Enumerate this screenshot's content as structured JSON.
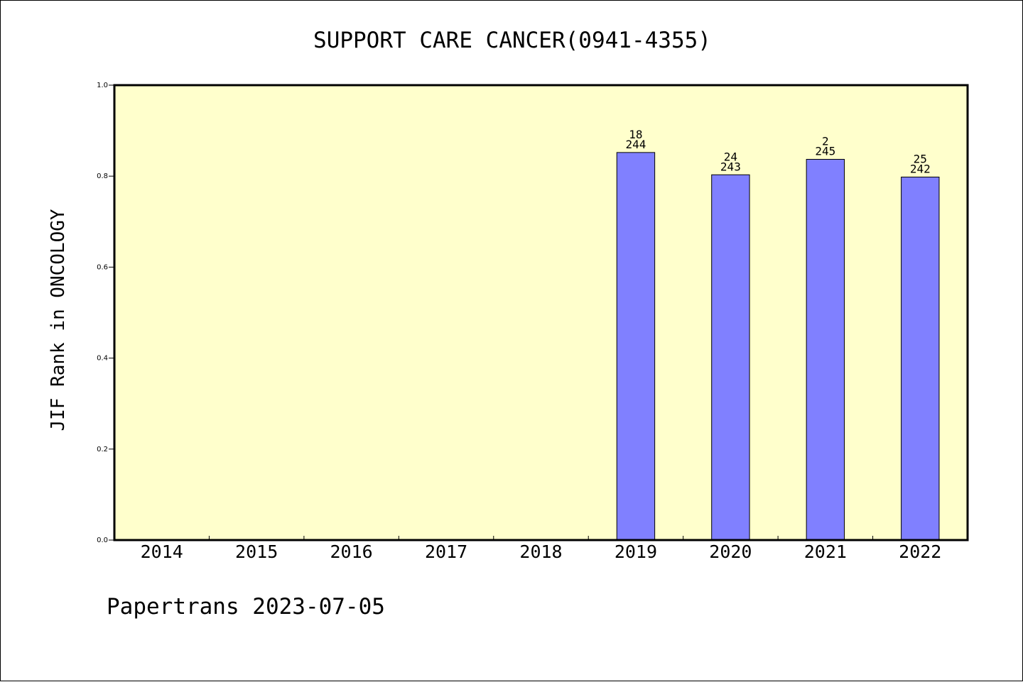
{
  "chart_data": {
    "type": "bar",
    "title": "SUPPORT CARE CANCER(0941-4355)",
    "ylabel": "JIF Rank in ONCOLOGY",
    "xlabel": "",
    "ylim": [
      0,
      1.0
    ],
    "yticks": [
      "0.0",
      "0.2",
      "0.4",
      "0.6",
      "0.8",
      "1.0"
    ],
    "categories": [
      "2014",
      "2015",
      "2016",
      "2017",
      "2018",
      "2019",
      "2020",
      "2021",
      "2022"
    ],
    "values": [
      null,
      null,
      null,
      null,
      null,
      0.852,
      0.803,
      0.837,
      0.798
    ],
    "label_top": [
      "",
      "",
      "",
      "",
      "",
      "18",
      "24",
      "2",
      "25"
    ],
    "label_bottom": [
      "",
      "",
      "",
      "",
      "",
      "244",
      "243",
      "245",
      "242"
    ],
    "grid": false,
    "colors": {
      "plot_background": "#ffffcc",
      "bar_fill": "#8080ff",
      "bar_stroke": "#000000",
      "axis": "#000000"
    }
  },
  "footer": {
    "text": "Papertrans 2023-07-05"
  }
}
